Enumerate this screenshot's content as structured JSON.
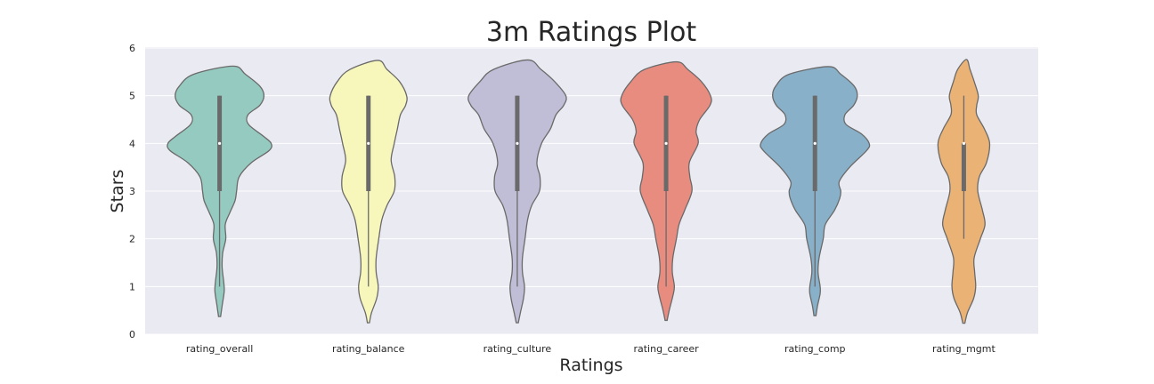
{
  "chart_data": {
    "type": "violin",
    "title": "3m Ratings Plot",
    "xlabel": "Ratings",
    "ylabel": "Stars",
    "ylim": [
      0,
      6
    ],
    "yticks": [
      0,
      1,
      2,
      3,
      4,
      5,
      6
    ],
    "grid": true,
    "background": "#eaeaf2",
    "categories": [
      "rating_overall",
      "rating_balance",
      "rating_culture",
      "rating_career",
      "rating_comp",
      "rating_mgmt"
    ],
    "series": [
      {
        "category": "rating_overall",
        "color": "#95cac1",
        "range": [
          0.37,
          5.62
        ],
        "density_profile": [
          [
            0.37,
            0.02
          ],
          [
            0.6,
            0.05
          ],
          [
            0.9,
            0.09
          ],
          [
            1.1,
            0.08
          ],
          [
            1.4,
            0.05
          ],
          [
            1.7,
            0.06
          ],
          [
            2.0,
            0.12
          ],
          [
            2.3,
            0.11
          ],
          [
            2.55,
            0.2
          ],
          [
            2.8,
            0.3
          ],
          [
            3.0,
            0.33
          ],
          [
            3.3,
            0.38
          ],
          [
            3.6,
            0.62
          ],
          [
            3.85,
            0.96
          ],
          [
            4.0,
            1.0
          ],
          [
            4.15,
            0.85
          ],
          [
            4.4,
            0.56
          ],
          [
            4.6,
            0.55
          ],
          [
            4.8,
            0.78
          ],
          [
            5.0,
            0.86
          ],
          [
            5.2,
            0.78
          ],
          [
            5.45,
            0.5
          ],
          [
            5.62,
            0.26
          ]
        ],
        "box": {
          "min": 1,
          "q1": 3,
          "median": 4,
          "q3": 5,
          "max": 5
        }
      },
      {
        "category": "rating_balance",
        "color": "#f7f7bb",
        "range": [
          0.24,
          5.74
        ],
        "density_profile": [
          [
            0.24,
            0.02
          ],
          [
            0.45,
            0.06
          ],
          [
            0.75,
            0.16
          ],
          [
            1.0,
            0.19
          ],
          [
            1.3,
            0.15
          ],
          [
            1.6,
            0.15
          ],
          [
            2.0,
            0.2
          ],
          [
            2.4,
            0.26
          ],
          [
            2.7,
            0.36
          ],
          [
            3.0,
            0.5
          ],
          [
            3.3,
            0.51
          ],
          [
            3.65,
            0.44
          ],
          [
            4.0,
            0.5
          ],
          [
            4.3,
            0.56
          ],
          [
            4.6,
            0.62
          ],
          [
            4.8,
            0.72
          ],
          [
            5.0,
            0.74
          ],
          [
            5.3,
            0.6
          ],
          [
            5.55,
            0.36
          ],
          [
            5.74,
            0.18
          ]
        ],
        "box": {
          "min": 1,
          "q1": 3,
          "median": 4,
          "q3": 5,
          "max": 5
        }
      },
      {
        "category": "rating_culture",
        "color": "#c0bdd7",
        "range": [
          0.24,
          5.75
        ],
        "density_profile": [
          [
            0.24,
            0.02
          ],
          [
            0.45,
            0.06
          ],
          [
            0.75,
            0.12
          ],
          [
            1.0,
            0.14
          ],
          [
            1.3,
            0.1
          ],
          [
            1.6,
            0.1
          ],
          [
            2.0,
            0.15
          ],
          [
            2.4,
            0.2
          ],
          [
            2.7,
            0.28
          ],
          [
            3.0,
            0.43
          ],
          [
            3.3,
            0.44
          ],
          [
            3.6,
            0.38
          ],
          [
            4.0,
            0.47
          ],
          [
            4.3,
            0.64
          ],
          [
            4.6,
            0.75
          ],
          [
            4.8,
            0.9
          ],
          [
            5.0,
            0.94
          ],
          [
            5.3,
            0.72
          ],
          [
            5.55,
            0.46
          ],
          [
            5.75,
            0.2
          ]
        ],
        "box": {
          "min": 1,
          "q1": 3,
          "median": 4,
          "q3": 5,
          "max": 5
        }
      },
      {
        "category": "rating_career",
        "color": "#e98c80",
        "range": [
          0.29,
          5.71
        ],
        "density_profile": [
          [
            0.29,
            0.02
          ],
          [
            0.5,
            0.06
          ],
          [
            0.8,
            0.13
          ],
          [
            1.0,
            0.16
          ],
          [
            1.3,
            0.12
          ],
          [
            1.6,
            0.13
          ],
          [
            2.0,
            0.2
          ],
          [
            2.3,
            0.25
          ],
          [
            2.6,
            0.36
          ],
          [
            3.0,
            0.5
          ],
          [
            3.3,
            0.46
          ],
          [
            3.6,
            0.45
          ],
          [
            4.0,
            0.62
          ],
          [
            4.25,
            0.58
          ],
          [
            4.5,
            0.65
          ],
          [
            4.8,
            0.85
          ],
          [
            5.0,
            0.86
          ],
          [
            5.3,
            0.68
          ],
          [
            5.55,
            0.42
          ],
          [
            5.71,
            0.2
          ]
        ],
        "box": {
          "min": 1,
          "q1": 3,
          "median": 4,
          "q3": 5,
          "max": 5
        }
      },
      {
        "category": "rating_comp",
        "color": "#88b0c9",
        "range": [
          0.39,
          5.61
        ],
        "density_profile": [
          [
            0.39,
            0.02
          ],
          [
            0.6,
            0.05
          ],
          [
            0.85,
            0.1
          ],
          [
            1.0,
            0.1
          ],
          [
            1.3,
            0.06
          ],
          [
            1.6,
            0.08
          ],
          [
            2.0,
            0.16
          ],
          [
            2.3,
            0.2
          ],
          [
            2.6,
            0.38
          ],
          [
            2.85,
            0.48
          ],
          [
            3.0,
            0.5
          ],
          [
            3.2,
            0.47
          ],
          [
            3.5,
            0.67
          ],
          [
            3.85,
            1.0
          ],
          [
            4.0,
            1.05
          ],
          [
            4.2,
            0.9
          ],
          [
            4.4,
            0.6
          ],
          [
            4.6,
            0.58
          ],
          [
            4.8,
            0.75
          ],
          [
            5.0,
            0.82
          ],
          [
            5.2,
            0.76
          ],
          [
            5.45,
            0.5
          ],
          [
            5.61,
            0.26
          ]
        ],
        "box": {
          "min": 1,
          "q1": 3,
          "median": 4,
          "q3": 5,
          "max": 5
        }
      },
      {
        "category": "rating_mgmt",
        "color": "#ebb275",
        "range": [
          0.23,
          5.76
        ],
        "density_profile": [
          [
            0.23,
            0.02
          ],
          [
            0.45,
            0.07
          ],
          [
            0.75,
            0.19
          ],
          [
            1.0,
            0.23
          ],
          [
            1.3,
            0.21
          ],
          [
            1.6,
            0.2
          ],
          [
            2.0,
            0.32
          ],
          [
            2.3,
            0.41
          ],
          [
            2.6,
            0.36
          ],
          [
            3.0,
            0.27
          ],
          [
            3.3,
            0.3
          ],
          [
            3.6,
            0.44
          ],
          [
            4.0,
            0.5
          ],
          [
            4.3,
            0.4
          ],
          [
            4.6,
            0.25
          ],
          [
            4.8,
            0.25
          ],
          [
            5.0,
            0.28
          ],
          [
            5.3,
            0.2
          ],
          [
            5.55,
            0.12
          ],
          [
            5.76,
            0.05
          ]
        ],
        "box": {
          "min": 2,
          "q1": 3,
          "median": 4,
          "q3": 4,
          "max": 5
        }
      }
    ]
  }
}
